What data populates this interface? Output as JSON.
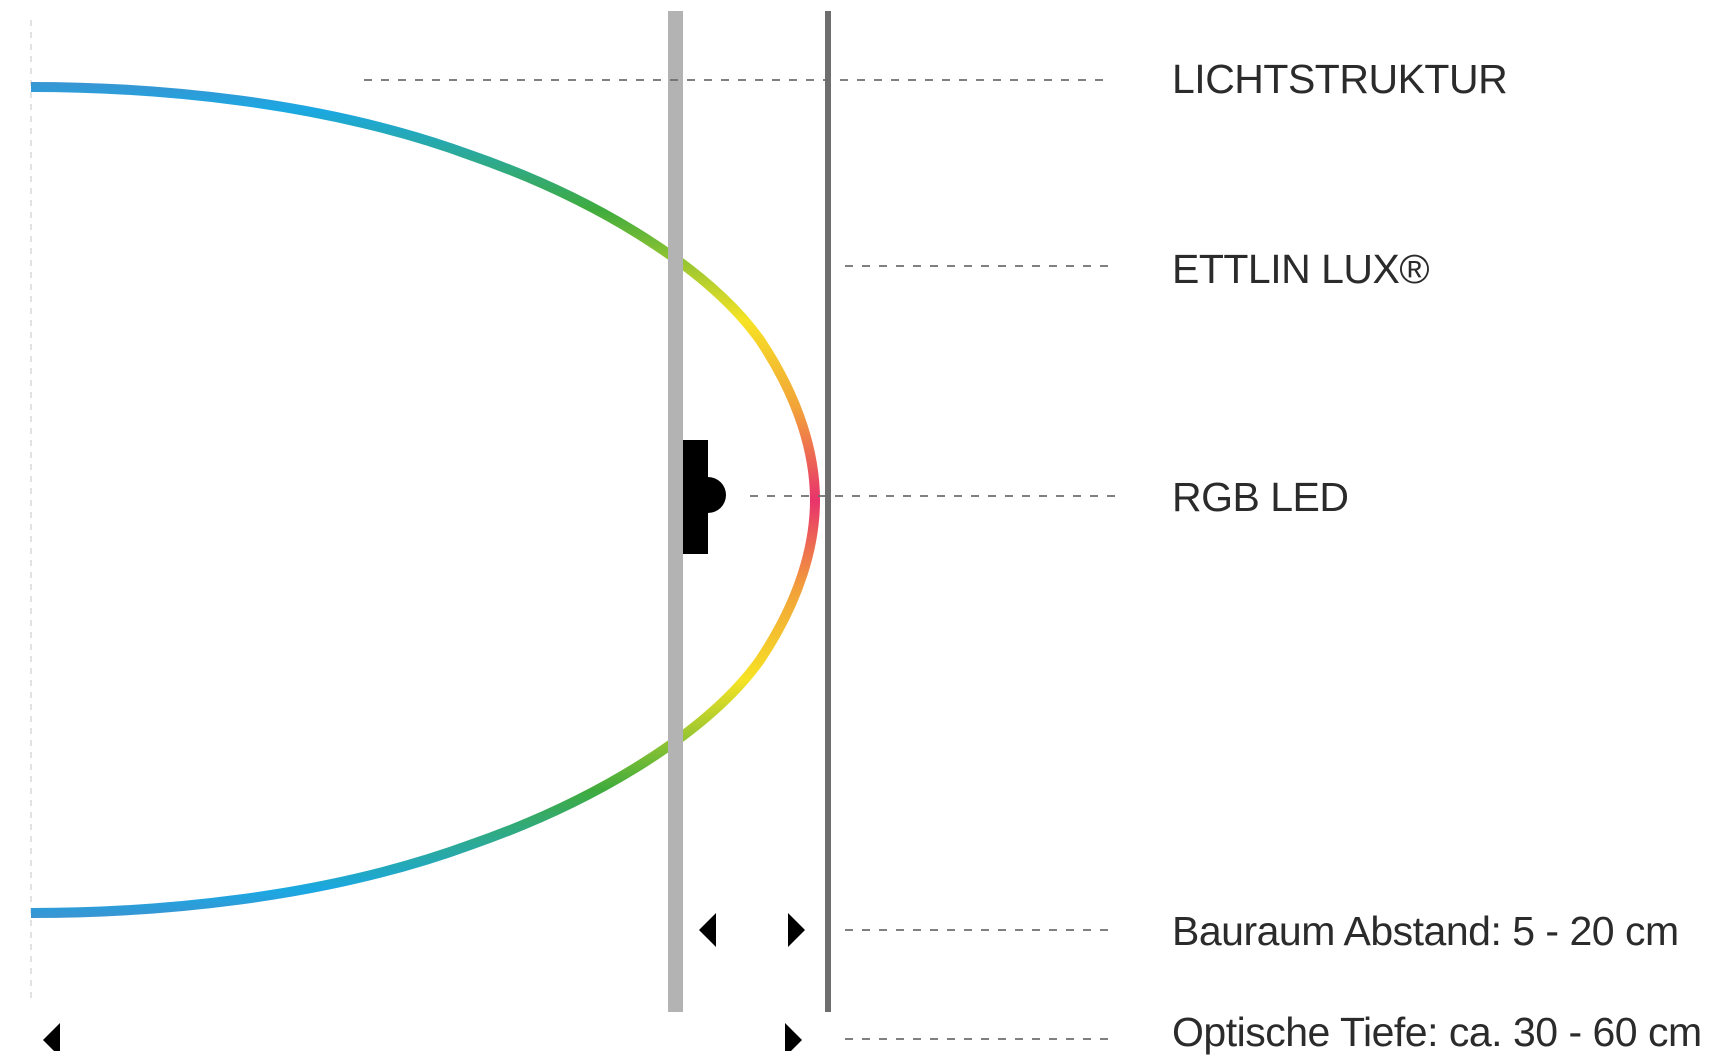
{
  "diagram": {
    "labels": {
      "lichtstruktur": "LICHTSTRUKTUR",
      "ettlin_lux": "ETTLIN LUX®",
      "rgb_led": "RGB LED",
      "bauraum": "Bauraum Abstand: 5 - 20 cm",
      "optische_tiefe": "Optische Tiefe: ca. 30 - 60 cm"
    },
    "colors": {
      "gradient": [
        "#e8336b",
        "#f2a13a",
        "#f6e324",
        "#3fab3d",
        "#1ba8e2",
        "#5c7fc0",
        "#9a4e9c"
      ],
      "lichtstruktur_bar": "#b3b3b3",
      "ettlin_lux_line": "#6e6e6e",
      "led": "#000000",
      "leader_line": "#6e6e6e"
    }
  }
}
